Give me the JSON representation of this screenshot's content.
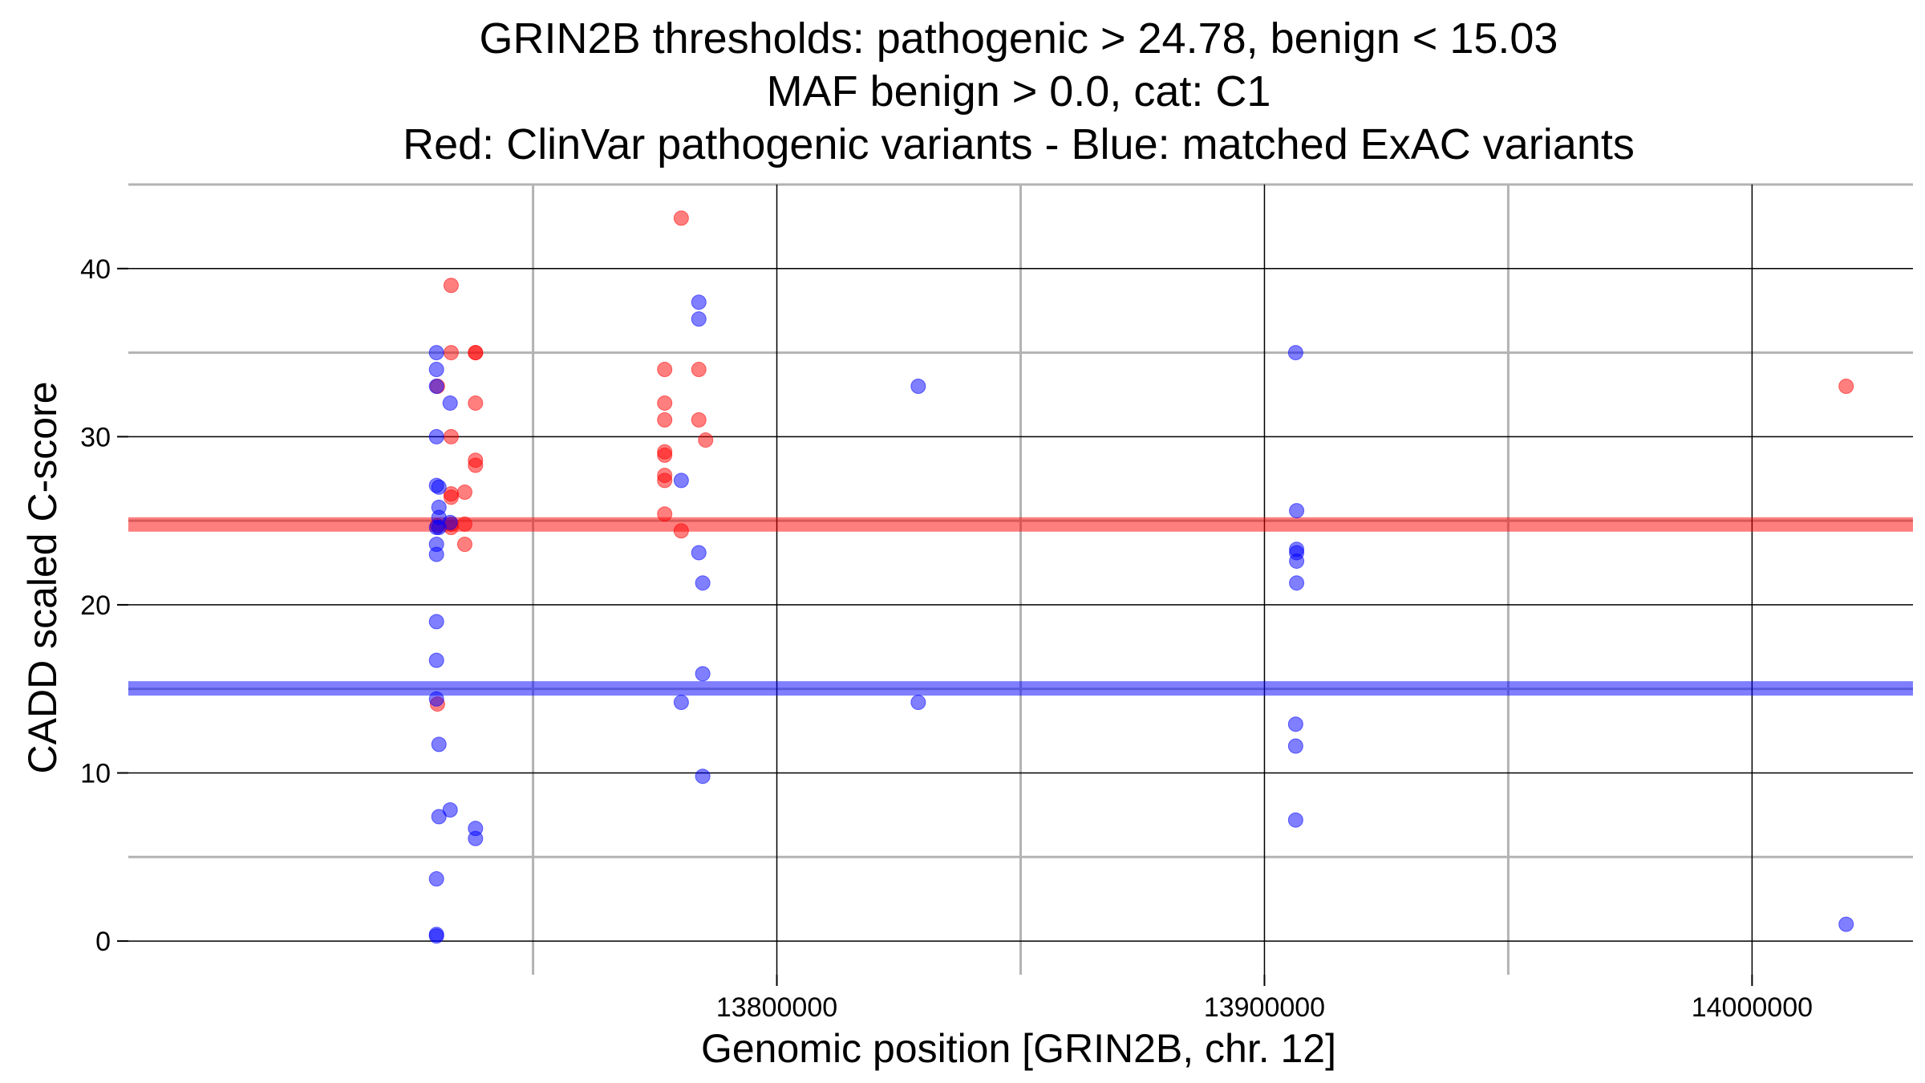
{
  "chart_data": {
    "type": "scatter",
    "title": [
      "GRIN2B thresholds: pathogenic > 24.78, benign < 15.03",
      "MAF benign > 0.0, cat: C1",
      "Red: ClinVar pathogenic variants - Blue: matched ExAC variants"
    ],
    "xlabel": "Genomic position [GRIN2B, chr. 12]",
    "ylabel": "CADD scaled C-score",
    "xlim": [
      13667000,
      14033000
    ],
    "ylim": [
      -2,
      45
    ],
    "xticks": [
      13800000,
      13900000,
      14000000
    ],
    "xtick_labels": [
      "13800000",
      "13900000",
      "14000000"
    ],
    "x_minor_grid": [
      13750000,
      13850000,
      13950000
    ],
    "yticks": [
      0,
      10,
      20,
      30,
      40
    ],
    "ytick_labels": [
      "0",
      "10",
      "20",
      "30",
      "40"
    ],
    "y_minor_grid": [
      5,
      15,
      25,
      35,
      45
    ],
    "thresholds": [
      {
        "name": "pathogenic",
        "value": 24.78,
        "color": "#ff0000"
      },
      {
        "name": "benign",
        "value": 15.03,
        "color": "#0000ff"
      }
    ],
    "series": [
      {
        "name": "ClinVar pathogenic variants",
        "color": "#ff0000",
        "points": [
          [
            13730400,
            33
          ],
          [
            13730400,
            24.7
          ],
          [
            13730400,
            14.1
          ],
          [
            13733200,
            39
          ],
          [
            13733200,
            35
          ],
          [
            13733200,
            30
          ],
          [
            13733200,
            26.6
          ],
          [
            13733200,
            26.4
          ],
          [
            13733200,
            24.8
          ],
          [
            13733200,
            24.6
          ],
          [
            13736000,
            26.7
          ],
          [
            13736000,
            24.8
          ],
          [
            13736000,
            23.6
          ],
          [
            13738200,
            35
          ],
          [
            13738200,
            35
          ],
          [
            13738200,
            32
          ],
          [
            13738200,
            28.6
          ],
          [
            13738200,
            28.3
          ],
          [
            13777000,
            34
          ],
          [
            13777000,
            32
          ],
          [
            13777000,
            31
          ],
          [
            13777000,
            29.1
          ],
          [
            13777000,
            28.9
          ],
          [
            13777000,
            27.7
          ],
          [
            13777000,
            27.4
          ],
          [
            13777000,
            25.4
          ],
          [
            13780400,
            43
          ],
          [
            13780400,
            24.4
          ],
          [
            13784000,
            34
          ],
          [
            13784000,
            31
          ],
          [
            13785400,
            29.8
          ],
          [
            14019300,
            33
          ]
        ]
      },
      {
        "name": "matched ExAC variants",
        "color": "#0000ff",
        "points": [
          [
            13730200,
            35
          ],
          [
            13730200,
            34
          ],
          [
            13730200,
            33
          ],
          [
            13730200,
            30
          ],
          [
            13730200,
            27.1
          ],
          [
            13730200,
            24.6
          ],
          [
            13730200,
            23.6
          ],
          [
            13730200,
            23
          ],
          [
            13730200,
            19
          ],
          [
            13730200,
            16.7
          ],
          [
            13730200,
            14.4
          ],
          [
            13730200,
            3.7
          ],
          [
            13730200,
            0.4
          ],
          [
            13730200,
            0.3
          ],
          [
            13730700,
            27
          ],
          [
            13730700,
            25.8
          ],
          [
            13730700,
            25.2
          ],
          [
            13730700,
            24.6
          ],
          [
            13730700,
            11.7
          ],
          [
            13730700,
            7.4
          ],
          [
            13733000,
            32
          ],
          [
            13733000,
            24.9
          ],
          [
            13733000,
            7.8
          ],
          [
            13738200,
            6.7
          ],
          [
            13738200,
            6.1
          ],
          [
            13780400,
            27.4
          ],
          [
            13780400,
            14.2
          ],
          [
            13784000,
            38
          ],
          [
            13784000,
            37
          ],
          [
            13784000,
            23.1
          ],
          [
            13784800,
            21.3
          ],
          [
            13784800,
            15.9
          ],
          [
            13784800,
            9.8
          ],
          [
            13829000,
            33
          ],
          [
            13829000,
            14.2
          ],
          [
            13906400,
            35
          ],
          [
            13906400,
            12.9
          ],
          [
            13906400,
            11.6
          ],
          [
            13906400,
            7.2
          ],
          [
            13906600,
            25.6
          ],
          [
            13906600,
            23.3
          ],
          [
            13906600,
            23.1
          ],
          [
            13906600,
            22.6
          ],
          [
            13906600,
            21.3
          ],
          [
            14019300,
            1
          ]
        ]
      }
    ]
  }
}
